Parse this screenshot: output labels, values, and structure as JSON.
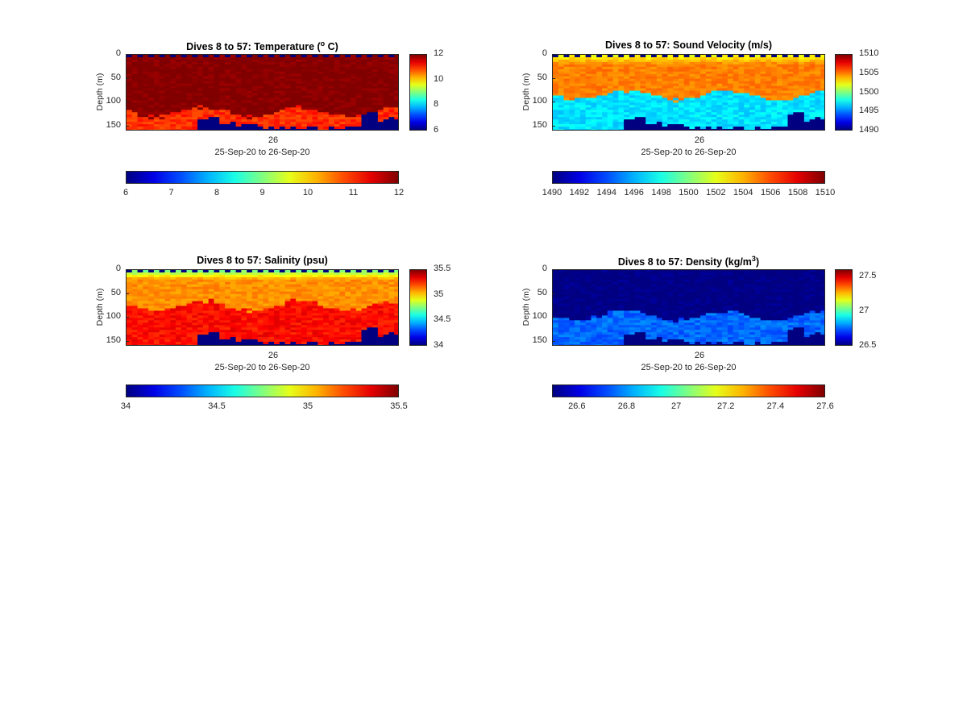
{
  "chart_data": [
    {
      "type": "heatmap",
      "title_prefix": "Dives 8 to 57: Temperature (",
      "title_sup": "o",
      "title_suffix": " C)",
      "ylabel": "Depth (m)",
      "yticks": [
        "0",
        "50",
        "100",
        "150"
      ],
      "ylim": [
        0,
        160
      ],
      "xticks": [
        "26"
      ],
      "xlabel": "25-Sep-20 to 26-Sep-20",
      "clim": [
        6,
        12
      ],
      "vcolorbar_ticks": [
        "12",
        "10",
        "8",
        "6"
      ],
      "hcolorbar_ticks": [
        "6",
        "7",
        "8",
        "9",
        "10",
        "11",
        "12"
      ],
      "profile": {
        "surface": 12,
        "mid": 12,
        "deep": 11,
        "below": 11,
        "transition_depth": 120
      }
    },
    {
      "type": "heatmap",
      "title_prefix": "Dives 8 to 57: Sound Velocity (m/s)",
      "title_sup": "",
      "title_suffix": "",
      "ylabel": "Depth (m)",
      "yticks": [
        "0",
        "50",
        "100",
        "150"
      ],
      "ylim": [
        0,
        160
      ],
      "xticks": [
        "26"
      ],
      "xlabel": "25-Sep-20 to 26-Sep-20",
      "clim": [
        1490,
        1510
      ],
      "vcolorbar_ticks": [
        "1510",
        "1505",
        "1500",
        "1495",
        "1490"
      ],
      "hcolorbar_ticks": [
        "1490",
        "1492",
        "1494",
        "1496",
        "1498",
        "1500",
        "1502",
        "1504",
        "1506",
        "1508",
        "1510"
      ],
      "profile": {
        "surface": 1502,
        "mid": 1505,
        "deep": 1497,
        "below": 1497,
        "transition_depth": 85
      }
    },
    {
      "type": "heatmap",
      "title_prefix": "Dives 8 to 57: Salinity (psu)",
      "title_sup": "",
      "title_suffix": "",
      "ylabel": "Depth (m)",
      "yticks": [
        "0",
        "50",
        "100",
        "150"
      ],
      "ylim": [
        0,
        160
      ],
      "xticks": [
        "26"
      ],
      "xlabel": "25-Sep-20 to 26-Sep-20",
      "clim": [
        34,
        35.5
      ],
      "vcolorbar_ticks": [
        "35.5",
        "35",
        "34.5",
        "34"
      ],
      "hcolorbar_ticks": [
        "34",
        "34.5",
        "35",
        "35.5"
      ],
      "profile": {
        "surface": 34.7,
        "mid": 35.1,
        "deep": 35.3,
        "below": 35.3,
        "transition_depth": 75
      }
    },
    {
      "type": "heatmap",
      "title_prefix": "Dives 8 to 57: Density (kg/m",
      "title_sup": "3",
      "title_suffix": ")",
      "ylabel": "Depth (m)",
      "yticks": [
        "0",
        "50",
        "100",
        "150"
      ],
      "ylim": [
        0,
        160
      ],
      "xticks": [
        "26"
      ],
      "xlabel": "25-Sep-20 to 26-Sep-20",
      "clim": [
        26.5,
        27.6
      ],
      "vcolorbar_ticks": [
        "27.5",
        "27",
        "26.5"
      ],
      "hcolorbar_ticks": [
        "26.6",
        "26.8",
        "27",
        "27.2",
        "27.4",
        "27.6"
      ],
      "profile": {
        "surface": 26.5,
        "mid": 26.5,
        "deep": 26.75,
        "below": 26.8,
        "transition_depth": 95
      }
    }
  ]
}
